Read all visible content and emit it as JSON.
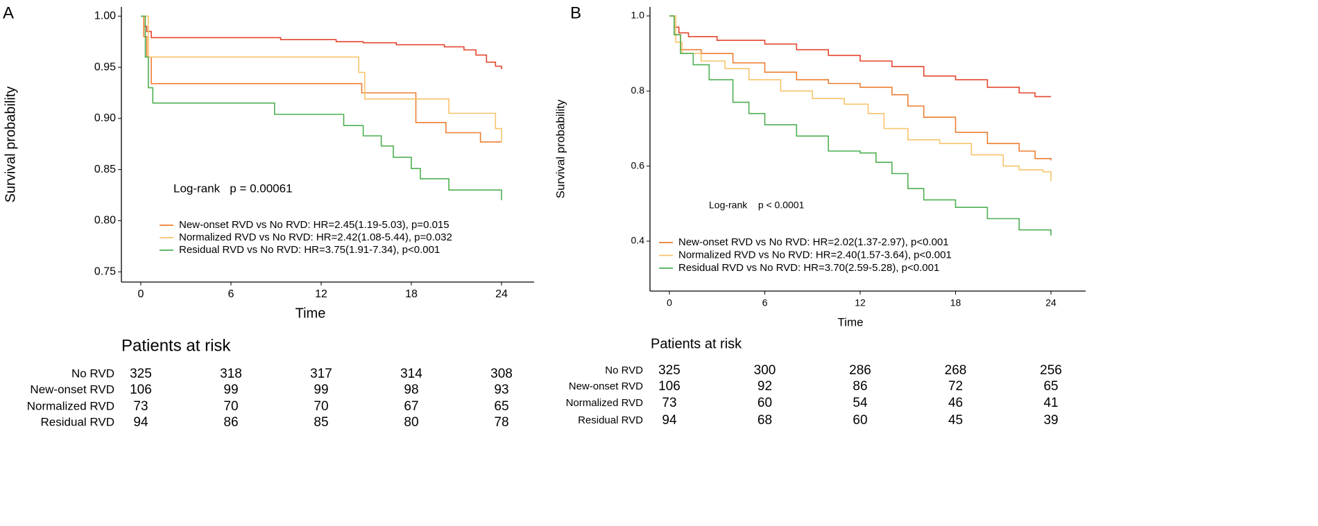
{
  "chart_data": [
    {
      "type": "line",
      "step": true,
      "panel": "A",
      "x_label": "Time",
      "y_label": "Survival probability",
      "annotation": "Log-rank   p = 0.00061",
      "xlim": [
        -1.29,
        26.17
      ],
      "ylim": [
        0.74,
        1.009
      ],
      "xticks": [
        0,
        6,
        12,
        18,
        24
      ],
      "yticks": [
        {
          "value": 0.75,
          "label": "0.75"
        },
        {
          "value": 0.8,
          "label": "0.80"
        },
        {
          "value": 0.85,
          "label": "0.85"
        },
        {
          "value": 0.9,
          "label": "0.90"
        },
        {
          "value": 0.95,
          "label": "0.95"
        },
        {
          "value": 1,
          "label": "1.00"
        }
      ],
      "risk_title": "Patients at risk",
      "series": [
        {
          "name": "No RVD",
          "color": "#e3452e",
          "x": [
            0,
            0.2,
            0.4,
            0.7,
            9.3,
            13,
            14.8,
            17,
            20.2,
            21.5,
            22.3,
            23,
            23.6,
            24
          ],
          "values": [
            1,
            0.99,
            0.985,
            0.979,
            0.977,
            0.975,
            0.974,
            0.972,
            0.97,
            0.967,
            0.962,
            0.955,
            0.951,
            0.948
          ],
          "at_risk": [
            325,
            318,
            317,
            314,
            308
          ]
        },
        {
          "name": "New-onset RVD",
          "color": "#ed7d31",
          "hr_label": "New-onset RVD vs No RVD: HR=2.45(1.19-5.03), p=0.015",
          "x": [
            0,
            0.2,
            0.4,
            0.7,
            14.7,
            18.3,
            20.3,
            22.6,
            24
          ],
          "values": [
            1,
            0.98,
            0.96,
            0.934,
            0.925,
            0.896,
            0.886,
            0.877,
            0.877
          ],
          "at_risk": [
            106,
            99,
            99,
            98,
            93
          ]
        },
        {
          "name": "Normalized RVD",
          "color": "#f8c36a",
          "hr_label": "Normalized RVD vs No RVD: HR=2.42(1.08-5.44), p=0.032",
          "x": [
            0,
            0.5,
            14.5,
            14.9,
            20.5,
            23.6,
            24
          ],
          "values": [
            1,
            0.96,
            0.945,
            0.919,
            0.905,
            0.89,
            0.877
          ],
          "at_risk": [
            73,
            70,
            70,
            67,
            65
          ]
        },
        {
          "name": "Residual RVD",
          "color": "#4caf50",
          "hr_label": "Residual RVD vs No RVD: HR=3.75(1.91-7.34), p<0.001",
          "x": [
            0,
            0.3,
            0.5,
            0.8,
            8.9,
            13.5,
            14.8,
            16,
            16.8,
            18,
            18.6,
            20.5,
            24
          ],
          "values": [
            1,
            0.96,
            0.93,
            0.915,
            0.904,
            0.893,
            0.883,
            0.873,
            0.862,
            0.851,
            0.841,
            0.83,
            0.82
          ],
          "at_risk": [
            94,
            86,
            85,
            80,
            78
          ]
        }
      ]
    },
    {
      "type": "line",
      "step": true,
      "panel": "B",
      "x_label": "Time",
      "y_label": "Survival probability",
      "annotation": "Log-rank    p < 0.0001",
      "xlim": [
        -1.22,
        26.18
      ],
      "ylim": [
        0.267,
        1.024
      ],
      "xticks": [
        0,
        6,
        12,
        18,
        24
      ],
      "yticks": [
        0.4,
        0.6,
        0.8,
        {
          "value": 1,
          "label": "1.0"
        }
      ],
      "risk_title": "Patients at risk",
      "series": [
        {
          "name": "No RVD",
          "color": "#e3452e",
          "x": [
            0,
            0.3,
            0.6,
            1.2,
            3,
            6,
            8,
            10,
            12,
            14,
            16,
            18,
            20,
            22,
            23,
            24
          ],
          "values": [
            1,
            0.97,
            0.955,
            0.945,
            0.935,
            0.925,
            0.91,
            0.895,
            0.88,
            0.865,
            0.84,
            0.83,
            0.81,
            0.795,
            0.785,
            0.785
          ],
          "at_risk": [
            325,
            300,
            286,
            268,
            256
          ]
        },
        {
          "name": "New-onset RVD",
          "color": "#ed7d31",
          "hr_label": "New-onset RVD vs No RVD: HR=2.02(1.37-2.97), p<0.001",
          "x": [
            0,
            0.3,
            0.7,
            2,
            4,
            6,
            8,
            10,
            12,
            14,
            15,
            16,
            18,
            20,
            22,
            23,
            24
          ],
          "values": [
            1,
            0.95,
            0.91,
            0.9,
            0.875,
            0.85,
            0.83,
            0.82,
            0.81,
            0.79,
            0.76,
            0.73,
            0.69,
            0.66,
            0.64,
            0.62,
            0.615
          ],
          "at_risk": [
            106,
            92,
            86,
            72,
            65
          ]
        },
        {
          "name": "Normalized RVD",
          "color": "#f8c36a",
          "hr_label": "Normalized RVD vs No RVD: HR=2.40(1.57-3.64), p<0.001",
          "x": [
            0,
            0.4,
            0.8,
            2,
            3.5,
            5,
            7,
            9,
            11,
            12.5,
            13.5,
            15,
            17,
            19,
            21,
            22,
            23.5,
            24
          ],
          "values": [
            1,
            0.93,
            0.9,
            0.88,
            0.86,
            0.83,
            0.8,
            0.78,
            0.765,
            0.74,
            0.7,
            0.67,
            0.66,
            0.63,
            0.6,
            0.59,
            0.585,
            0.56
          ],
          "at_risk": [
            73,
            60,
            54,
            46,
            41
          ]
        },
        {
          "name": "Residual RVD",
          "color": "#4caf50",
          "hr_label": "Residual RVD vs No RVD: HR=3.70(2.59-5.28), p<0.001",
          "x": [
            0,
            0.3,
            0.7,
            1.5,
            2.5,
            4,
            5,
            6,
            8,
            10,
            12,
            13,
            14,
            15,
            16,
            18,
            20,
            22,
            24
          ],
          "values": [
            1,
            0.95,
            0.9,
            0.87,
            0.83,
            0.77,
            0.74,
            0.71,
            0.68,
            0.64,
            0.635,
            0.61,
            0.58,
            0.54,
            0.51,
            0.49,
            0.46,
            0.43,
            0.415
          ],
          "at_risk": [
            94,
            68,
            60,
            45,
            39
          ]
        }
      ]
    }
  ]
}
